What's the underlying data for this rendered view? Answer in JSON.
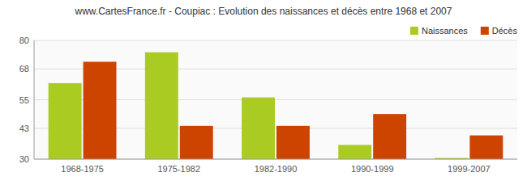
{
  "chart_data": {
    "type": "bar",
    "title": "www.CartesFrance.fr - Coupiac : Evolution des naissances et décès entre 1968 et 2007",
    "categories": [
      "1968-1975",
      "1975-1982",
      "1982-1990",
      "1990-1999",
      "1999-2007"
    ],
    "series": [
      {
        "name": "Naissances",
        "color": "#aacc22",
        "values": [
          62,
          75,
          56,
          36,
          30.5
        ]
      },
      {
        "name": "Décès",
        "color": "#cc4400",
        "values": [
          71,
          44,
          44,
          49,
          40
        ]
      }
    ],
    "ylim": [
      30,
      80
    ],
    "yticks": [
      30,
      43,
      55,
      68,
      80
    ],
    "grid": true,
    "legend": "upper right"
  }
}
